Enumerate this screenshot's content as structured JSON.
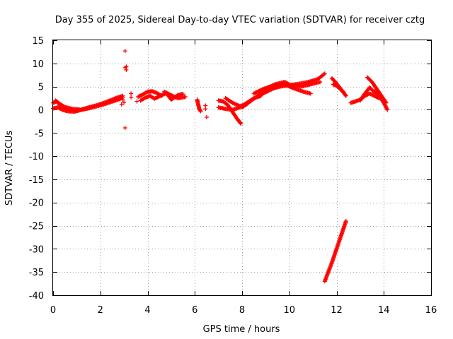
{
  "chart_data": {
    "type": "scatter",
    "title": "Day 355 of 2025, Sidereal Day-to-day VTEC variation (SDTVAR) for receiver cztg",
    "xlabel": "GPS time / hours",
    "ylabel": "SDTVAR / TECUs",
    "xlim": [
      0,
      16
    ],
    "ylim": [
      -40,
      15
    ],
    "xticks": [
      0,
      2,
      4,
      6,
      8,
      10,
      12,
      14,
      16
    ],
    "yticks": [
      15,
      10,
      5,
      0,
      -5,
      -10,
      -15,
      -20,
      -25,
      -30,
      -35,
      -40
    ],
    "grid": true,
    "marker": "+",
    "series_color": "#ff0000",
    "segments": [
      {
        "name": "arc-a1",
        "x": [
          0.0,
          0.15,
          0.3,
          0.5,
          0.7,
          0.9,
          1.1,
          1.3,
          1.5,
          1.8,
          2.1,
          2.4,
          2.7,
          2.95
        ],
        "y": [
          1.5,
          1.8,
          1.0,
          0.4,
          0.0,
          -0.2,
          -0.1,
          0.2,
          0.5,
          0.9,
          1.4,
          2.0,
          2.6,
          3.0
        ]
      },
      {
        "name": "arc-a2",
        "x": [
          0.0,
          0.2,
          0.4,
          0.6,
          0.9,
          1.2,
          1.5,
          1.8,
          2.1,
          2.4,
          2.7,
          2.95
        ],
        "y": [
          0.3,
          0.5,
          0.0,
          -0.3,
          -0.4,
          0.0,
          0.3,
          0.7,
          1.1,
          1.6,
          2.1,
          2.6
        ]
      },
      {
        "name": "arc-a3",
        "x": [
          0.1,
          0.3,
          0.5,
          0.8,
          1.1
        ],
        "y": [
          2.0,
          1.2,
          0.6,
          0.2,
          0.1
        ]
      },
      {
        "name": "arc-b1",
        "x": [
          3.6,
          3.8,
          4.0,
          4.2,
          4.4,
          4.6
        ],
        "y": [
          2.8,
          3.3,
          3.9,
          4.0,
          3.6,
          3.0
        ]
      },
      {
        "name": "arc-b2",
        "x": [
          4.7,
          4.9,
          5.1,
          5.3,
          5.6
        ],
        "y": [
          3.9,
          3.4,
          2.9,
          2.5,
          2.8
        ]
      },
      {
        "name": "arc-b3",
        "x": [
          3.7,
          3.9,
          4.1,
          4.3,
          4.5,
          4.8,
          5.0,
          5.3,
          5.5
        ],
        "y": [
          2.0,
          2.6,
          3.0,
          2.4,
          2.9,
          3.6,
          2.2,
          3.2,
          3.4
        ]
      },
      {
        "name": "arc-c1",
        "x": [
          6.1,
          6.15,
          6.2,
          6.25
        ],
        "y": [
          2.2,
          1.0,
          0.0,
          -0.3
        ]
      },
      {
        "name": "arc-d1",
        "x": [
          7.0,
          7.2,
          7.4,
          7.6,
          7.8,
          7.95
        ],
        "y": [
          2.0,
          1.8,
          1.0,
          -0.5,
          -2.0,
          -3.0
        ]
      },
      {
        "name": "arc-d2",
        "x": [
          7.0,
          7.3,
          7.6,
          7.9,
          8.2,
          8.5,
          8.8
        ],
        "y": [
          0.5,
          0.2,
          0.0,
          0.5,
          1.5,
          2.5,
          3.0
        ]
      },
      {
        "name": "arc-d3",
        "x": [
          7.3,
          7.6,
          7.9,
          8.2
        ],
        "y": [
          2.5,
          1.5,
          0.8,
          1.2
        ]
      },
      {
        "name": "arc-e1",
        "x": [
          8.0,
          8.4,
          8.8,
          9.2,
          9.6,
          10.0,
          10.4,
          10.8,
          11.2,
          11.5
        ],
        "y": [
          0.5,
          2.0,
          3.5,
          4.5,
          5.0,
          5.3,
          5.6,
          6.0,
          6.6,
          7.8
        ]
      },
      {
        "name": "arc-e2",
        "x": [
          8.5,
          8.9,
          9.3,
          9.7,
          10.1,
          10.5,
          10.9,
          11.3
        ],
        "y": [
          3.5,
          4.5,
          5.2,
          5.6,
          5.3,
          5.0,
          5.5,
          6.0
        ]
      },
      {
        "name": "arc-e3",
        "x": [
          8.6,
          9.0,
          9.4,
          9.8,
          10.2,
          10.6,
          10.9
        ],
        "y": [
          2.8,
          3.8,
          4.8,
          5.5,
          4.6,
          3.9,
          3.5
        ]
      },
      {
        "name": "arc-e4",
        "x": [
          9.0,
          9.4,
          9.8,
          10.1
        ],
        "y": [
          4.5,
          5.5,
          6.0,
          5.2
        ]
      },
      {
        "name": "arc-f1",
        "x": [
          11.8,
          11.95,
          12.1,
          12.25,
          12.4
        ],
        "y": [
          6.8,
          6.0,
          5.0,
          4.0,
          3.0
        ]
      },
      {
        "name": "arc-f2",
        "x": [
          11.85,
          12.0,
          12.15,
          12.3
        ],
        "y": [
          5.5,
          5.2,
          4.5,
          3.8
        ]
      },
      {
        "name": "arc-g1",
        "x": [
          12.6,
          12.8,
          13.0,
          13.2,
          13.4,
          13.6,
          13.8
        ],
        "y": [
          1.5,
          1.8,
          2.2,
          3.0,
          3.5,
          3.0,
          2.5
        ]
      },
      {
        "name": "arc-g2",
        "x": [
          13.0,
          13.2,
          13.4,
          13.6
        ],
        "y": [
          2.0,
          3.5,
          4.8,
          3.8
        ]
      },
      {
        "name": "arc-h1",
        "x": [
          13.3,
          13.5,
          13.7,
          13.9,
          14.1
        ],
        "y": [
          7.0,
          6.0,
          4.5,
          3.0,
          1.5
        ]
      },
      {
        "name": "arc-h2",
        "x": [
          13.6,
          13.8,
          14.0,
          14.15
        ],
        "y": [
          4.0,
          3.0,
          1.5,
          0.0
        ]
      },
      {
        "name": "arc-j1",
        "x": [
          11.5,
          11.8,
          12.1,
          12.4
        ],
        "y": [
          -37.0,
          -33.0,
          -28.5,
          -24.0
        ]
      }
    ],
    "points": [
      {
        "x": 3.05,
        "y": 12.7
      },
      {
        "x": 3.05,
        "y": 9.1
      },
      {
        "x": 3.1,
        "y": 8.6
      },
      {
        "x": 3.1,
        "y": 9.3
      },
      {
        "x": 3.05,
        "y": -3.9
      },
      {
        "x": 3.3,
        "y": 3.5
      },
      {
        "x": 3.3,
        "y": 2.7
      },
      {
        "x": 3.55,
        "y": 1.8
      },
      {
        "x": 6.45,
        "y": 0.9
      },
      {
        "x": 6.45,
        "y": 0.2
      },
      {
        "x": 6.5,
        "y": -1.6
      },
      {
        "x": 2.9,
        "y": 1.2
      },
      {
        "x": 2.95,
        "y": 2.2
      },
      {
        "x": 3.0,
        "y": 1.6
      }
    ]
  }
}
